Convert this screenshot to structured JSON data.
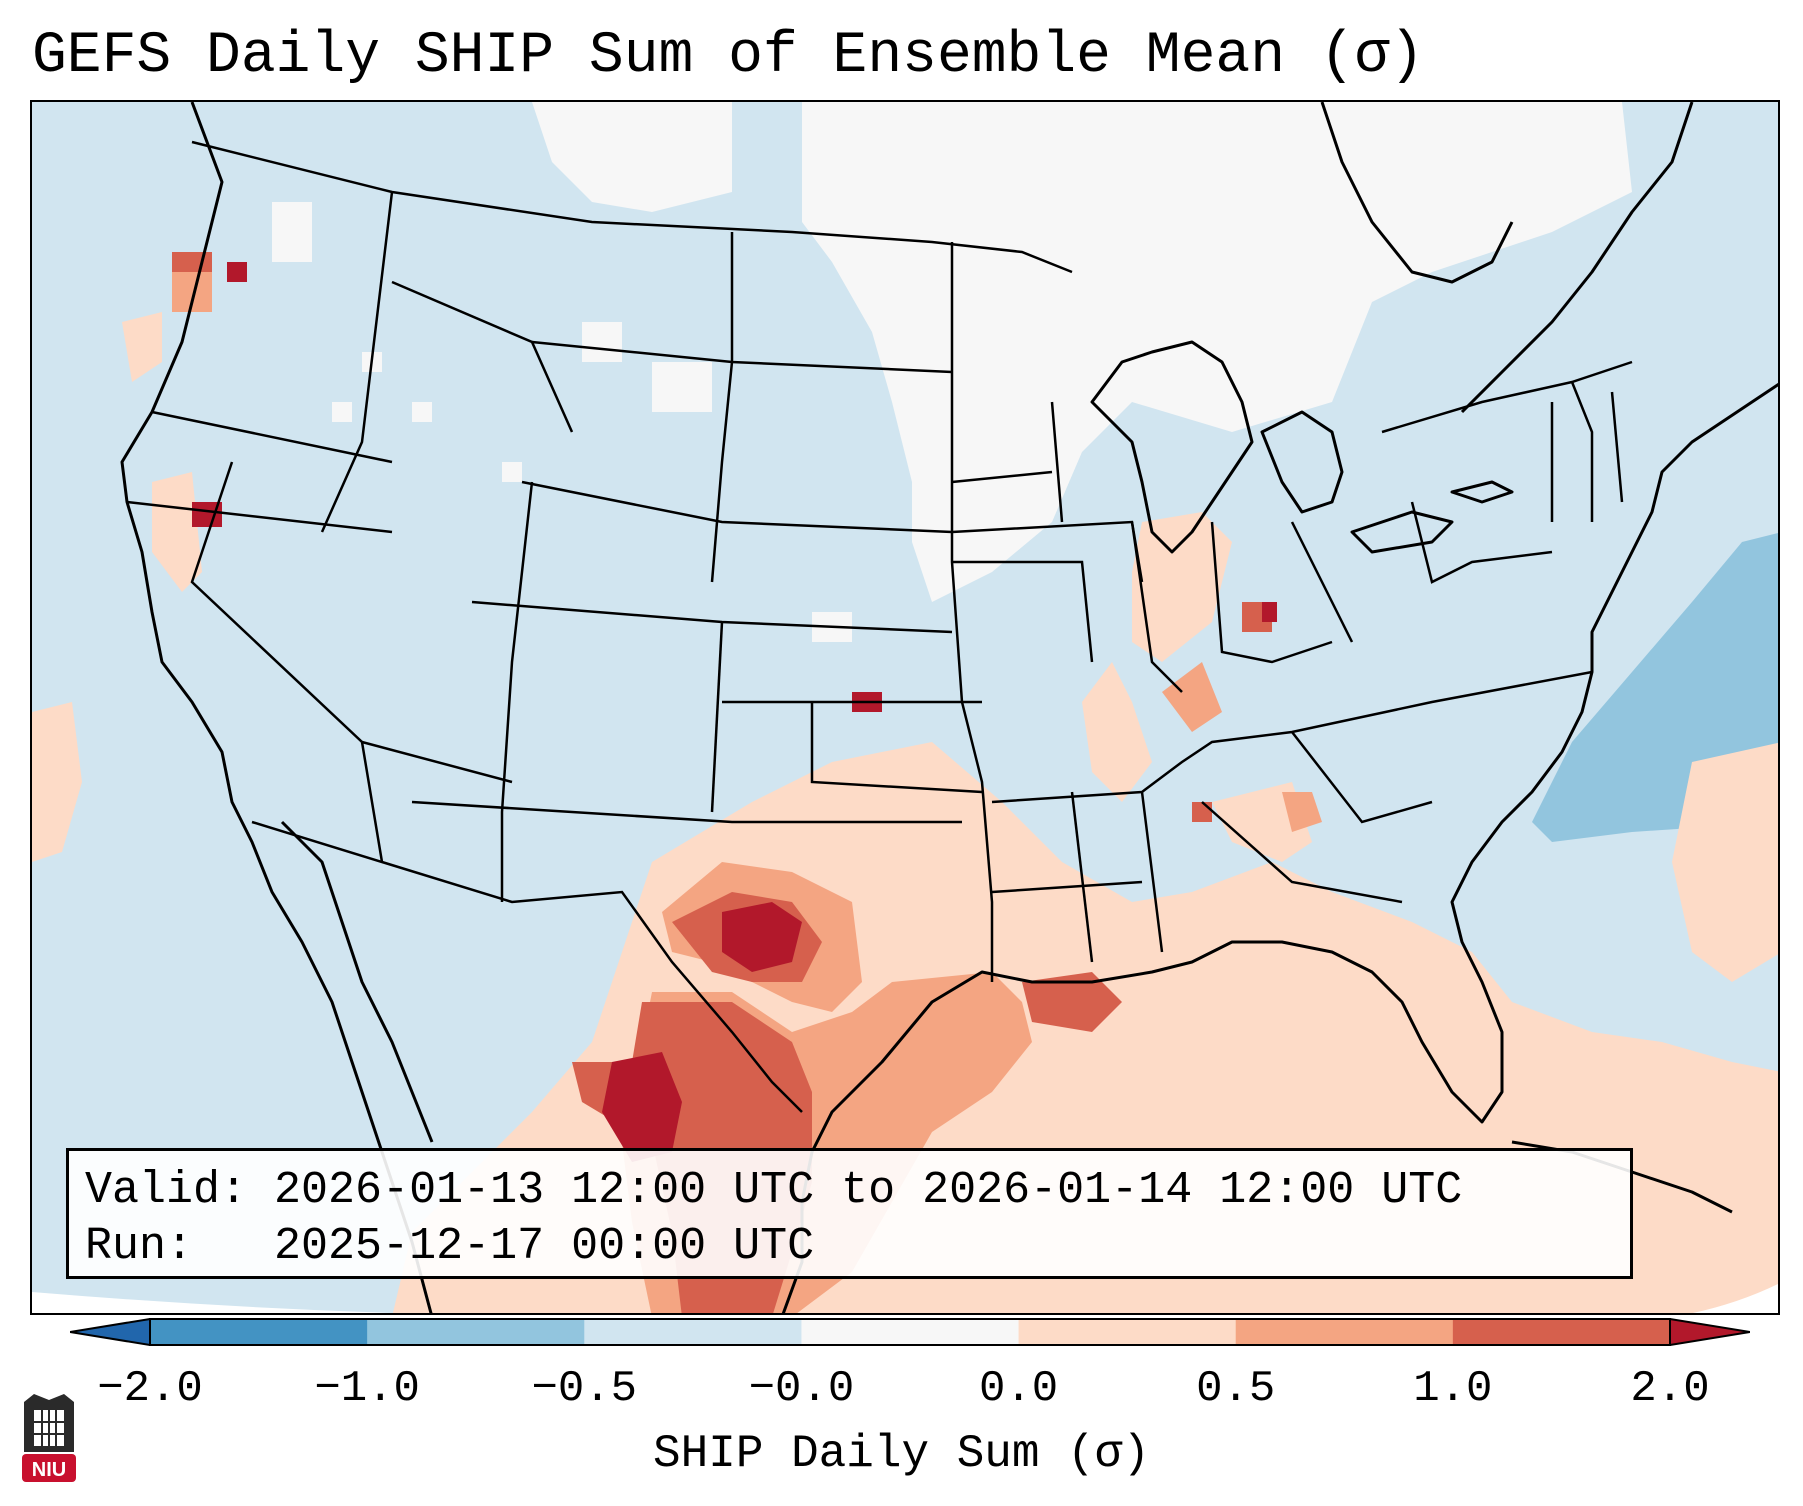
{
  "title": "GEFS Daily SHIP Sum of Ensemble Mean (σ)",
  "info": {
    "valid_label": "Valid:",
    "valid_value": "2026-01-13 12:00 UTC to 2026-01-14 12:00 UTC",
    "run_label": "Run:",
    "run_value": "2025-12-17 00:00 UTC"
  },
  "colorbar": {
    "label": "SHIP Daily Sum (σ)",
    "ticks": [
      "−2.0",
      "−1.0",
      "−0.5",
      "−0.0",
      "0.0",
      "0.5",
      "1.0",
      "2.0"
    ],
    "bin_colors": [
      "#4393c3",
      "#92c5de",
      "#d1e5f0",
      "#f7f7f7",
      "#fddbc7",
      "#f4a582",
      "#d6604d"
    ],
    "extend_low_color": "#2166ac",
    "extend_high_color": "#b2182b"
  },
  "map": {
    "projection": "Lambert conformal, CONUS",
    "background_color": "#d1e5f0",
    "outline_color": "#000000"
  },
  "logo": {
    "text": "NIU",
    "color": "#c8102e"
  }
}
